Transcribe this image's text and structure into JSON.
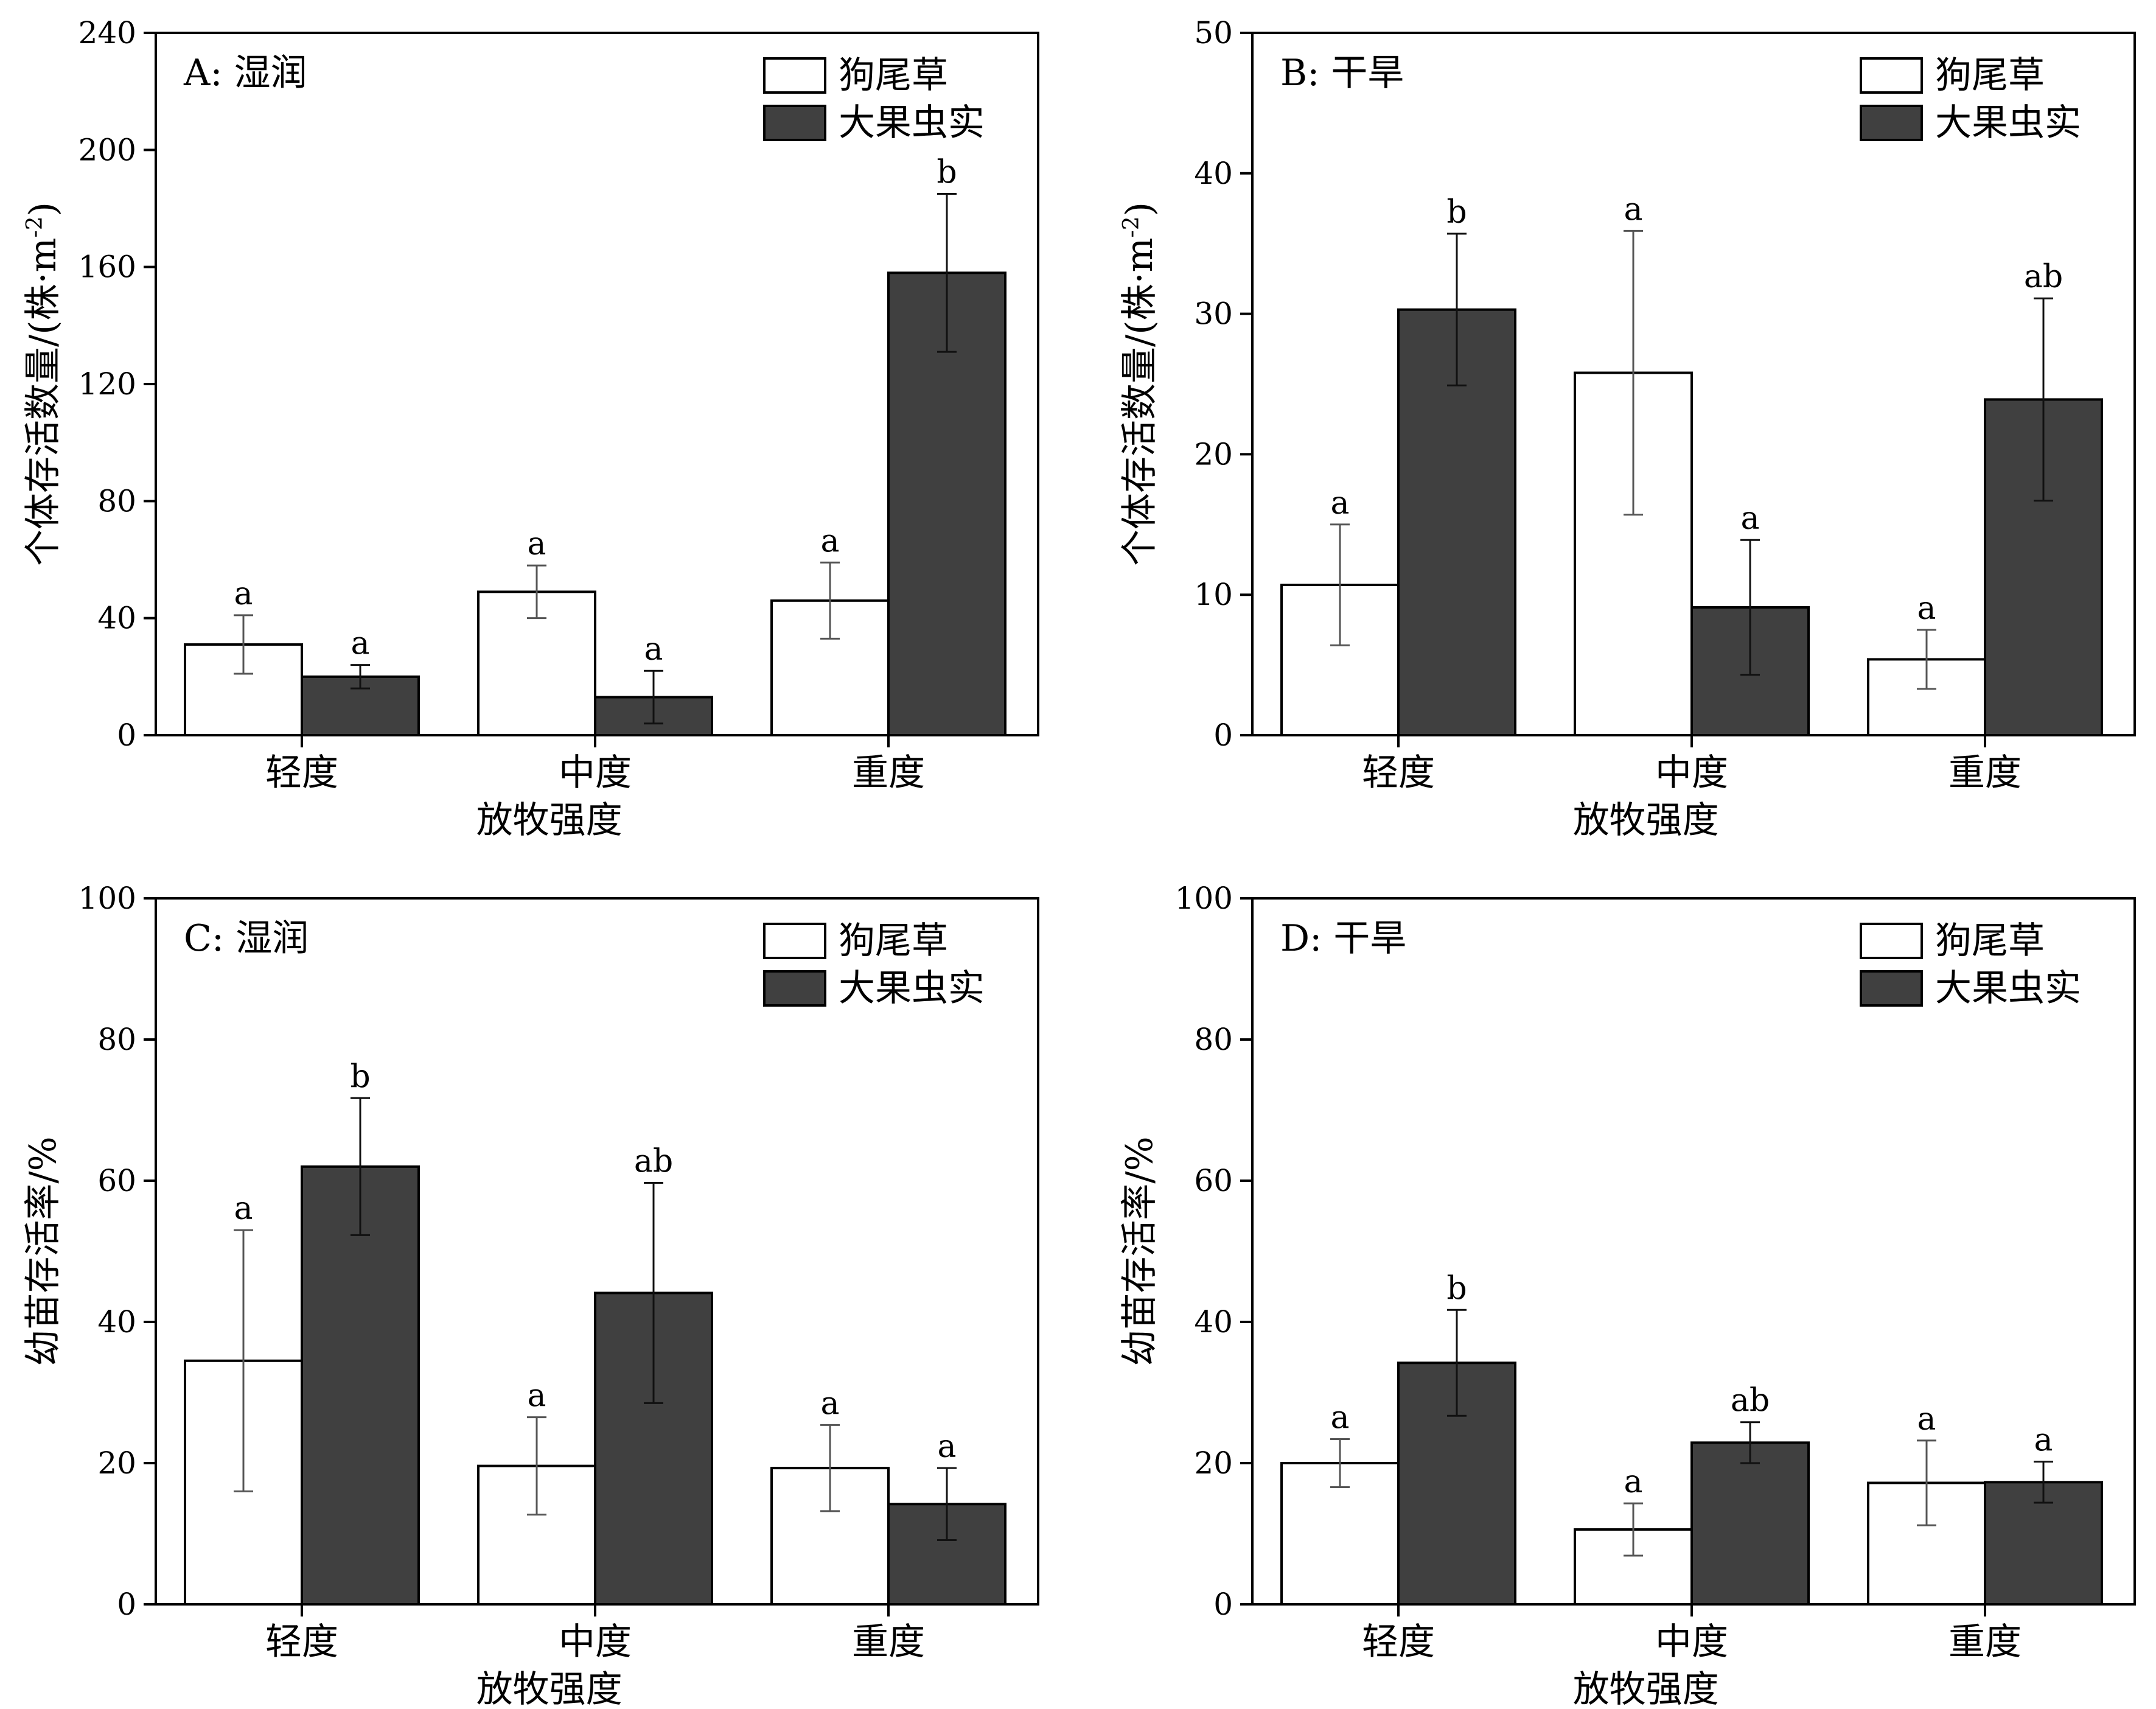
{
  "chart_data": [
    {
      "type": "bar",
      "panel_label": "A: 湿润",
      "categories": [
        "轻度",
        "中度",
        "重度"
      ],
      "xlabel": "放牧强度",
      "ylabel_text": "个体存活数量/(株·m",
      "ylabel_sup": "-2",
      "ylabel_close": ")",
      "ylim": [
        0,
        240
      ],
      "yticks": [
        "0",
        "40",
        "80",
        "120",
        "160",
        "200",
        "240"
      ],
      "ytick_values": [
        0,
        40,
        80,
        120,
        160,
        200,
        240
      ],
      "legend": "top-right",
      "series": [
        {
          "name": "狗尾草",
          "color": "#ffffff",
          "values": [
            31,
            49,
            46
          ],
          "errors": [
            10,
            9,
            13
          ],
          "letters": [
            "a",
            "a",
            "a"
          ]
        },
        {
          "name": "大果虫实",
          "color": "#404040",
          "values": [
            20,
            13,
            158
          ],
          "errors": [
            4,
            9,
            27
          ],
          "letters": [
            "a",
            "a",
            "b"
          ]
        }
      ]
    },
    {
      "type": "bar",
      "panel_label": "B: 干旱",
      "categories": [
        "轻度",
        "中度",
        "重度"
      ],
      "xlabel": "放牧强度",
      "ylabel_text": "个体存活数量/(株·m",
      "ylabel_sup": "-2",
      "ylabel_close": ")",
      "ylim": [
        0,
        50
      ],
      "yticks": [
        "0",
        "10",
        "20",
        "30",
        "40",
        "50"
      ],
      "ytick_values": [
        0,
        10,
        20,
        30,
        40,
        50
      ],
      "legend": "top-right",
      "series": [
        {
          "name": "狗尾草",
          "color": "#ffffff",
          "values": [
            10.7,
            25.8,
            5.4
          ],
          "errors": [
            4.3,
            10.1,
            2.1
          ],
          "letters": [
            "a",
            "a",
            "a"
          ]
        },
        {
          "name": "大果虫实",
          "color": "#404040",
          "values": [
            30.3,
            9.1,
            23.9
          ],
          "errors": [
            5.4,
            4.8,
            7.2
          ],
          "letters": [
            "b",
            "a",
            "ab"
          ]
        }
      ]
    },
    {
      "type": "bar",
      "panel_label": "C: 湿润",
      "categories": [
        "轻度",
        "中度",
        "重度"
      ],
      "xlabel": "放牧强度",
      "ylabel_text": "幼苗存活率/%",
      "ylabel_sup": "",
      "ylabel_close": "",
      "ylim": [
        0,
        100
      ],
      "yticks": [
        "0",
        "20",
        "40",
        "60",
        "80",
        "100"
      ],
      "ytick_values": [
        0,
        20,
        40,
        60,
        80,
        100
      ],
      "legend": "top-right",
      "series": [
        {
          "name": "狗尾草",
          "color": "#ffffff",
          "values": [
            34.5,
            19.6,
            19.3
          ],
          "errors": [
            18.5,
            6.9,
            6.1
          ],
          "letters": [
            "a",
            "a",
            "a"
          ]
        },
        {
          "name": "大果虫实",
          "color": "#404040",
          "values": [
            62.0,
            44.1,
            14.2
          ],
          "errors": [
            9.7,
            15.6,
            5.1
          ],
          "letters": [
            "b",
            "ab",
            "a"
          ]
        }
      ]
    },
    {
      "type": "bar",
      "panel_label": "D: 干旱",
      "categories": [
        "轻度",
        "中度",
        "重度"
      ],
      "xlabel": "放牧强度",
      "ylabel_text": "幼苗存活率/%",
      "ylabel_sup": "",
      "ylabel_close": "",
      "ylim": [
        0,
        100
      ],
      "yticks": [
        "0",
        "20",
        "40",
        "60",
        "80",
        "100"
      ],
      "ytick_values": [
        0,
        20,
        40,
        60,
        80,
        100
      ],
      "legend": "top-right",
      "series": [
        {
          "name": "狗尾草",
          "color": "#ffffff",
          "values": [
            20.0,
            10.6,
            17.2
          ],
          "errors": [
            3.4,
            3.7,
            6.0
          ],
          "letters": [
            "a",
            "a",
            "a"
          ]
        },
        {
          "name": "大果虫实",
          "color": "#404040",
          "values": [
            34.2,
            22.9,
            17.3
          ],
          "errors": [
            7.5,
            2.9,
            2.9
          ],
          "letters": [
            "b",
            "ab",
            "a"
          ]
        }
      ]
    }
  ]
}
